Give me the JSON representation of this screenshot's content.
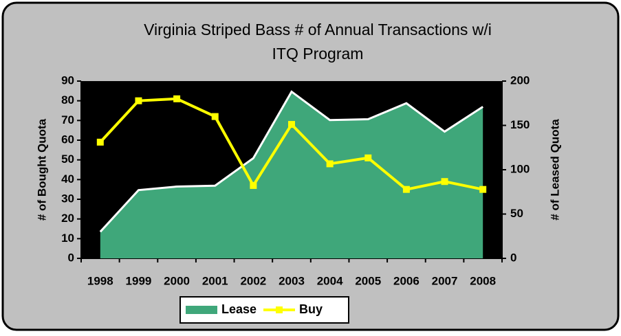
{
  "chart_data": {
    "type": "area_line",
    "title": [
      "Virginia Striped Bass # of Annual Transactions w/i",
      "ITQ Program"
    ],
    "ylabel": "# of Bought Quota",
    "y2label": "# of Leased Quota",
    "categories": [
      "1998",
      "1999",
      "2000",
      "2001",
      "2002",
      "2003",
      "2004",
      "2005",
      "2006",
      "2007",
      "2008"
    ],
    "series": [
      {
        "name": "Lease",
        "color": "#3fa77a",
        "axis": "y2",
        "kind": "area",
        "values": [
          30,
          77,
          81,
          82,
          113,
          188,
          156,
          157,
          175,
          143,
          171
        ]
      },
      {
        "name": "Buy",
        "color": "#ffff00",
        "kind": "line",
        "values": [
          59,
          80,
          81,
          72,
          37,
          68,
          48,
          51,
          35,
          39,
          35
        ]
      }
    ],
    "ylim": [
      0,
      90
    ],
    "yticks": [
      0,
      10,
      20,
      30,
      40,
      50,
      60,
      70,
      80,
      90
    ],
    "y2lim": [
      0,
      200
    ],
    "y2ticks": [
      0,
      50,
      100,
      150,
      200
    ],
    "legend": "bottom"
  }
}
